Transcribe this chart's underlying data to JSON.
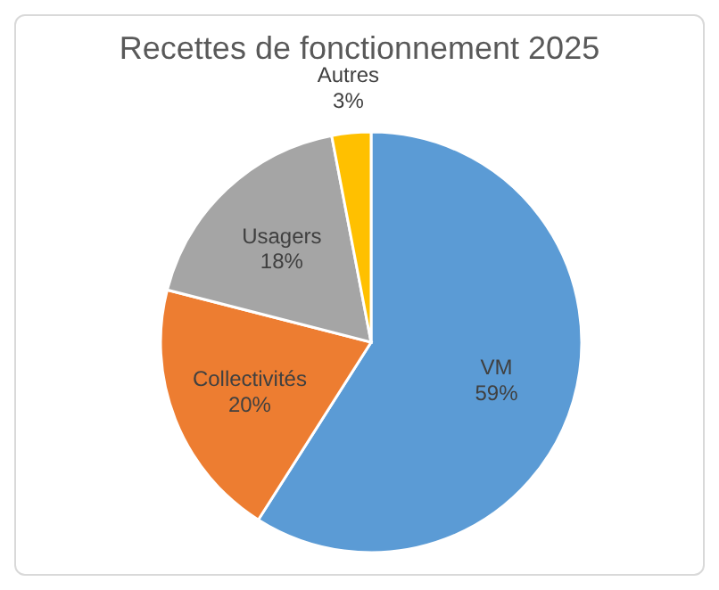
{
  "chart_data": {
    "type": "pie",
    "title": "Recettes de fonctionnement 2025",
    "categories": [
      "VM",
      "Collectivités",
      "Usagers",
      "Autres"
    ],
    "values": [
      59,
      20,
      18,
      3
    ],
    "colors": [
      "#5b9bd5",
      "#ed7d31",
      "#a5a5a5",
      "#ffc000"
    ],
    "value_labels": [
      "59%",
      "20%",
      "18%",
      "3%"
    ]
  }
}
